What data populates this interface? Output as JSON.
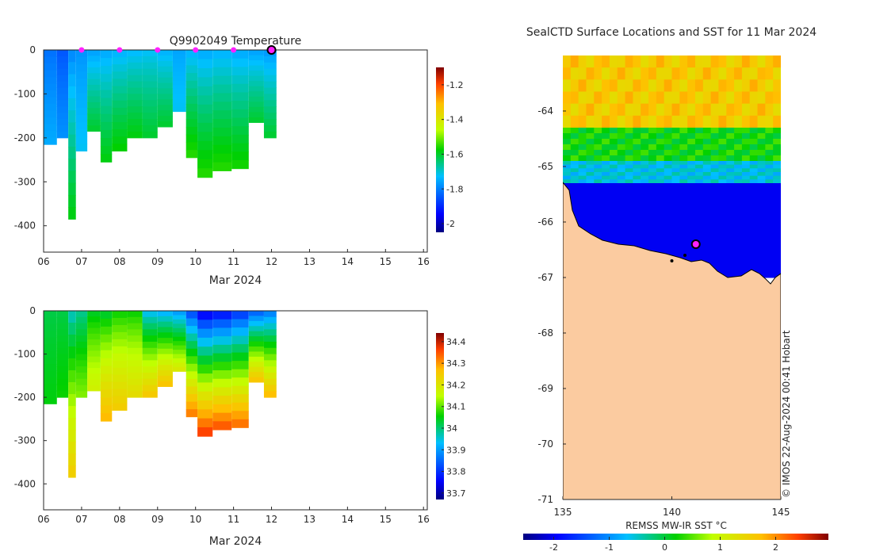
{
  "figure": {
    "float_id": "Q9902049",
    "variable": "Temperature",
    "x_month_label": "Mar 2024",
    "map_title": "SealCTD Surface Locations and SST for 11 Mar 2024",
    "credit": "© IMOS 22-Aug-2024 00:41 Hobart",
    "sst_label": "REMSS MW-IR SST °C"
  },
  "colors": {
    "deep_blue": "#0a3fc0",
    "ocean_mid": "#00b7f0",
    "green": "#10d000",
    "land": "#fbcba0",
    "marker": "#ff22ff",
    "track": "#000000"
  },
  "chart_data": [
    {
      "type": "heatmap",
      "name": "temperature-section",
      "title": "Q9902049  Temperature",
      "xlabel": "Mar 2024",
      "x_ticks": [
        "06",
        "07",
        "08",
        "09",
        "10",
        "11",
        "12",
        "13",
        "14",
        "15",
        "16"
      ],
      "y_ticks": [
        "0",
        "-100",
        "-200",
        "-300",
        "-400"
      ],
      "xlim": [
        6,
        16.1
      ],
      "ylim": [
        -460,
        0
      ],
      "colorbar": {
        "ticks": [
          "-1.2",
          "-1.4",
          "-1.6",
          "-1.8",
          "-2"
        ],
        "values": [
          -1.2,
          -1.4,
          -1.6,
          -1.8,
          -2.0
        ],
        "range": [
          -2.05,
          -1.1
        ]
      },
      "profiles": [
        {
          "t": 6.0,
          "depth": 215,
          "top": -1.82,
          "bottom": -1.75
        },
        {
          "t": 6.35,
          "depth": 200,
          "top": -1.85,
          "bottom": -1.78
        },
        {
          "t": 6.65,
          "depth": 385,
          "top": -1.8,
          "bottom": -1.58
        },
        {
          "t": 6.85,
          "depth": 230,
          "top": -1.78,
          "bottom": -1.72
        },
        {
          "t": 7.15,
          "depth": 185,
          "top": -1.77,
          "bottom": -1.6
        },
        {
          "t": 7.5,
          "depth": 255,
          "top": -1.76,
          "bottom": -1.58
        },
        {
          "t": 7.8,
          "depth": 230,
          "top": -1.75,
          "bottom": -1.57
        },
        {
          "t": 8.2,
          "depth": 200,
          "top": -1.74,
          "bottom": -1.58
        },
        {
          "t": 8.6,
          "depth": 200,
          "top": -1.73,
          "bottom": -1.6
        },
        {
          "t": 9.0,
          "depth": 175,
          "top": -1.75,
          "bottom": -1.6
        },
        {
          "t": 9.4,
          "depth": 140,
          "top": -1.76,
          "bottom": -1.72
        },
        {
          "t": 9.75,
          "depth": 245,
          "top": -1.75,
          "bottom": -1.55
        },
        {
          "t": 10.05,
          "depth": 290,
          "top": -1.76,
          "bottom": -1.55
        },
        {
          "t": 10.45,
          "depth": 275,
          "top": -1.75,
          "bottom": -1.55
        },
        {
          "t": 10.95,
          "depth": 270,
          "top": -1.76,
          "bottom": -1.56
        },
        {
          "t": 11.4,
          "depth": 165,
          "top": -1.77,
          "bottom": -1.6
        },
        {
          "t": 11.8,
          "depth": 200,
          "top": -1.78,
          "bottom": -1.6
        }
      ],
      "surface_markers": [
        7,
        8,
        9,
        10,
        11
      ],
      "current_marker": 12
    },
    {
      "type": "heatmap",
      "name": "salinity-section",
      "xlabel": "Mar 2024",
      "x_ticks": [
        "06",
        "07",
        "08",
        "09",
        "10",
        "11",
        "12",
        "13",
        "14",
        "15",
        "16"
      ],
      "y_ticks": [
        "0",
        "-100",
        "-200",
        "-300",
        "-400"
      ],
      "xlim": [
        6,
        16.1
      ],
      "ylim": [
        -460,
        0
      ],
      "colorbar": {
        "ticks": [
          "34.4",
          "34.3",
          "34.2",
          "34.1",
          "34",
          "33.9",
          "33.8",
          "33.7"
        ],
        "values": [
          34.4,
          34.3,
          34.2,
          34.1,
          34.0,
          33.9,
          33.8,
          33.7
        ],
        "range": [
          33.67,
          34.44
        ]
      },
      "profiles": [
        {
          "t": 6.0,
          "depth": 215,
          "top": 34.02,
          "bottom": 34.05
        },
        {
          "t": 6.35,
          "depth": 200,
          "top": 34.02,
          "bottom": 34.06
        },
        {
          "t": 6.65,
          "depth": 385,
          "top": 33.95,
          "bottom": 34.25
        },
        {
          "t": 6.85,
          "depth": 200,
          "top": 33.98,
          "bottom": 34.12
        },
        {
          "t": 7.15,
          "depth": 185,
          "top": 34.03,
          "bottom": 34.18
        },
        {
          "t": 7.5,
          "depth": 255,
          "top": 34.02,
          "bottom": 34.28
        },
        {
          "t": 7.8,
          "depth": 230,
          "top": 34.05,
          "bottom": 34.25
        },
        {
          "t": 8.2,
          "depth": 200,
          "top": 34.05,
          "bottom": 34.22
        },
        {
          "t": 8.6,
          "depth": 200,
          "top": 33.92,
          "bottom": 34.26
        },
        {
          "t": 9.0,
          "depth": 175,
          "top": 33.9,
          "bottom": 34.27
        },
        {
          "t": 9.4,
          "depth": 140,
          "top": 33.88,
          "bottom": 34.2
        },
        {
          "t": 9.75,
          "depth": 245,
          "top": 33.8,
          "bottom": 34.33
        },
        {
          "t": 10.05,
          "depth": 290,
          "top": 33.72,
          "bottom": 34.38
        },
        {
          "t": 10.45,
          "depth": 275,
          "top": 33.74,
          "bottom": 34.36
        },
        {
          "t": 10.95,
          "depth": 270,
          "top": 33.78,
          "bottom": 34.34
        },
        {
          "t": 11.4,
          "depth": 165,
          "top": 33.82,
          "bottom": 34.27
        },
        {
          "t": 11.8,
          "depth": 200,
          "top": 33.85,
          "bottom": 34.28
        }
      ]
    },
    {
      "type": "heatmap",
      "name": "sst-map",
      "title": "SealCTD Surface Locations and SST for 11 Mar 2024",
      "x_ticks": [
        "135",
        "140",
        "145"
      ],
      "y_ticks": [
        "-64",
        "-65",
        "-66",
        "-67",
        "-68",
        "-69",
        "-70",
        "-71"
      ],
      "xlim": [
        135,
        145
      ],
      "ylim": [
        -71,
        -63
      ],
      "colorbar": {
        "label": "REMSS MW-IR SST °C",
        "ticks": [
          "-2",
          "-1",
          "0",
          "1",
          "2"
        ],
        "values": [
          -2,
          -1,
          0,
          1,
          2
        ],
        "range": [
          -2.55,
          2.95
        ]
      },
      "sst_bands": [
        {
          "lat_from": -63.0,
          "lat_to": -64.3,
          "value": 1.6
        },
        {
          "lat_from": -64.3,
          "lat_to": -64.9,
          "value": 0.2
        },
        {
          "lat_from": -64.9,
          "lat_to": -65.3,
          "value": -0.6
        },
        {
          "lat_from": -65.3,
          "lat_to": -67.0,
          "value": -2.0
        }
      ],
      "track": {
        "lon": [
          140.0,
          140.6,
          141.1
        ],
        "lat": [
          -66.7,
          -66.6,
          -66.4
        ]
      },
      "current_position": {
        "lon": 141.1,
        "lat": -66.4
      }
    }
  ]
}
